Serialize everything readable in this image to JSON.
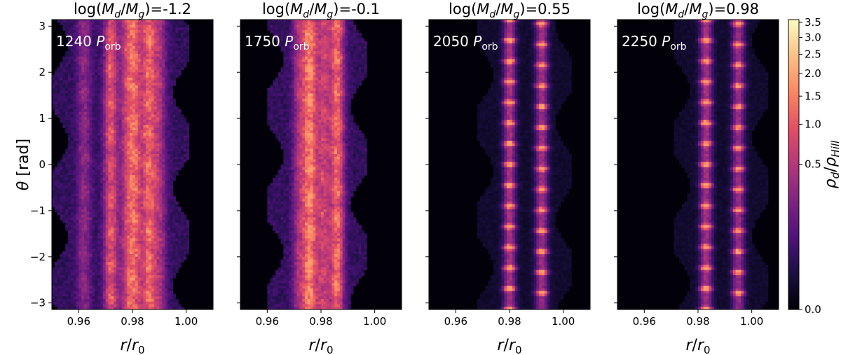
{
  "chart_data": {
    "type": "heatmap",
    "colormap": "magma",
    "xlabel": "r/r₀",
    "ylabel": "θ [rad]",
    "xlim": [
      0.95,
      1.01
    ],
    "ylim": [
      -3.14159,
      3.14159
    ],
    "xticks": [
      0.96,
      0.98,
      1.0
    ],
    "xtick_labels": [
      "0.96",
      "0.98",
      "1.00"
    ],
    "yticks": [
      3,
      2,
      1,
      0,
      -1,
      -2,
      -3
    ],
    "ytick_labels": [
      "3",
      "2",
      "1",
      "0",
      "−1",
      "−2",
      "−3"
    ],
    "colorbar": {
      "label": "ρd/ρHill",
      "range": [
        0.0,
        3.6
      ],
      "ticks": [
        0.0,
        0.5,
        1.0,
        1.5,
        2.0,
        2.5,
        3.0,
        3.5
      ],
      "tick_labels": [
        "0.0",
        "0.5",
        "1.0",
        "1.5",
        "2.0",
        "2.5",
        "3.0",
        "3.5"
      ],
      "scale": "nonlinear (power-law)"
    },
    "panels": [
      {
        "title_prefix": "log(",
        "title_sym1": "M",
        "title_sub1": "d",
        "title_slash": "/",
        "title_sym2": "M",
        "title_sub2": "g",
        "title_value": ")=-1.2",
        "time_value": "1240",
        "time_unit": "P",
        "time_sub": "orb",
        "rings_r": [
          0.962,
          0.972,
          0.978,
          0.981,
          0.986,
          0.99
        ],
        "ring_strength": [
          0.35,
          0.75,
          0.55,
          0.7,
          0.8,
          0.45
        ],
        "clumpy": false
      },
      {
        "title_prefix": "log(",
        "title_sym1": "M",
        "title_sub1": "d",
        "title_slash": "/",
        "title_sym2": "M",
        "title_sub2": "g",
        "title_value": ")=-0.1",
        "time_value": "1750",
        "time_unit": "P",
        "time_sub": "orb",
        "rings_r": [
          0.972,
          0.976,
          0.981,
          0.986
        ],
        "ring_strength": [
          0.45,
          0.95,
          0.6,
          0.85
        ],
        "clumpy": false
      },
      {
        "title_prefix": "log(",
        "title_sym1": "M",
        "title_sub1": "d",
        "title_slash": "/",
        "title_sym2": "M",
        "title_sub2": "g",
        "title_value": ")=0.55",
        "time_value": "2050",
        "time_unit": "P",
        "time_sub": "orb",
        "rings_r": [
          0.98,
          0.992
        ],
        "ring_strength": [
          1.0,
          0.95
        ],
        "clumpy": true
      },
      {
        "title_prefix": "log(",
        "title_sym1": "M",
        "title_sub1": "d",
        "title_slash": "/",
        "title_sym2": "M",
        "title_sub2": "g",
        "title_value": ")=0.98",
        "time_value": "2250",
        "time_unit": "P",
        "time_sub": "orb",
        "rings_r": [
          0.983,
          0.995
        ],
        "ring_strength": [
          1.0,
          0.9
        ],
        "clumpy": true
      }
    ]
  }
}
